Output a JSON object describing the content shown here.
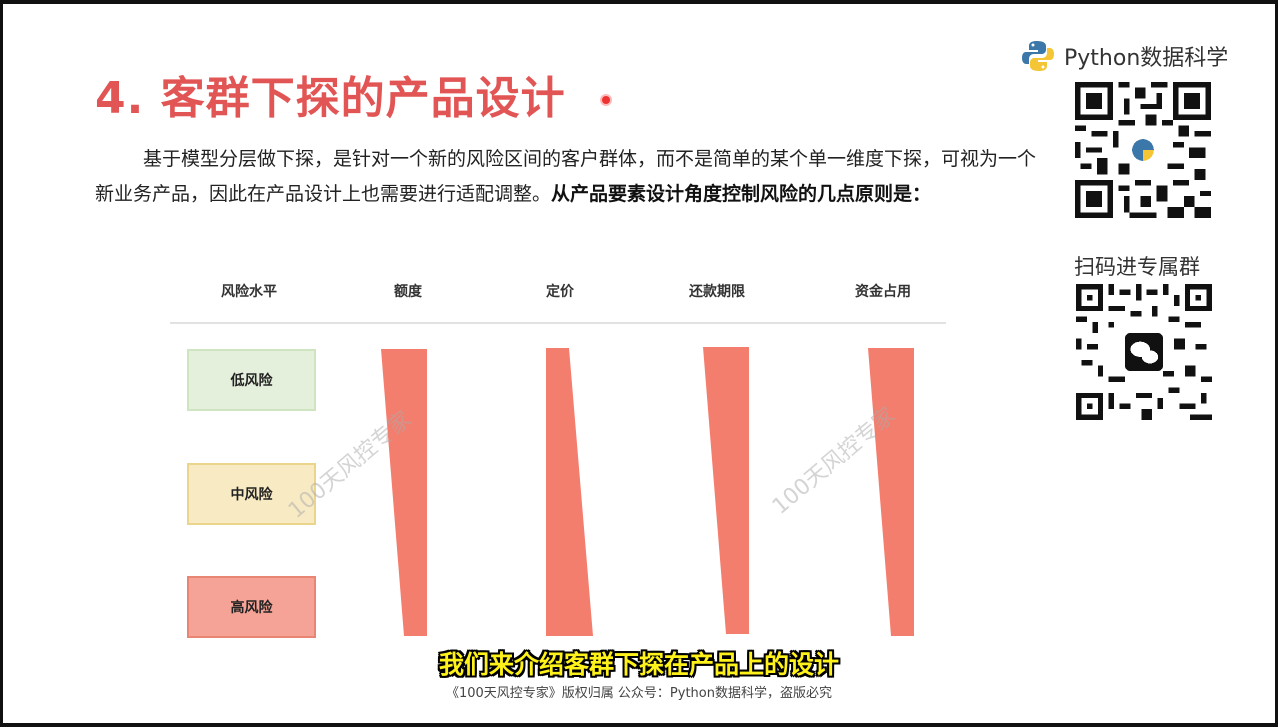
{
  "slide": {
    "title": "4. 客群下探的产品设计",
    "paragraph_normal": "基于模型分层做下探，是针对一个新的风险区间的客户群体，而不是简单的某个单一维度下探，可视为一个新业务产品，因此在产品设计上也需要进行适配调整。",
    "paragraph_bold": "从产品要素设计角度控制风险的几点原则是："
  },
  "table": {
    "headers": [
      "风险水平",
      "额度",
      "定价",
      "还款期限",
      "资金占用"
    ],
    "risk_levels": [
      "低风险",
      "中风险",
      "高风险"
    ]
  },
  "bar_color": "#f47e6e",
  "watermark": "100天风控专家",
  "sidebar": {
    "brand": "Python数据科学",
    "qr_caption": "扫码进专属群"
  },
  "subtitle": "我们来介绍客群下探在产品上的设计",
  "copyright": "《100天风控专家》版权归属 公众号：Python数据科学，盗版必究"
}
